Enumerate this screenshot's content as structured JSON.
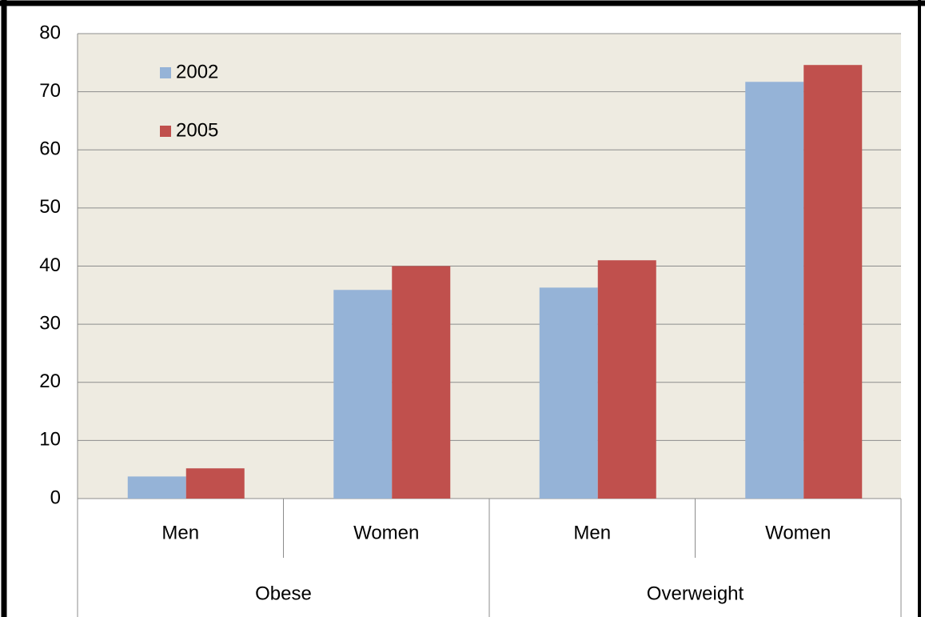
{
  "chart_data": {
    "type": "bar",
    "categories": [
      "Men",
      "Women",
      "Men",
      "Women"
    ],
    "groups": [
      "Obese",
      "Overweight"
    ],
    "series": [
      {
        "name": "2002",
        "color": "#95b3d7",
        "values": [
          3.8,
          35.9,
          36.3,
          71.7
        ]
      },
      {
        "name": "2005",
        "color": "#c0504d",
        "values": [
          5.2,
          40.0,
          41.0,
          74.6
        ]
      }
    ],
    "ylim": [
      0,
      80
    ],
    "yticks": [
      0,
      10,
      20,
      30,
      40,
      50,
      60,
      70,
      80
    ],
    "grid": true,
    "legend": "top-left"
  }
}
